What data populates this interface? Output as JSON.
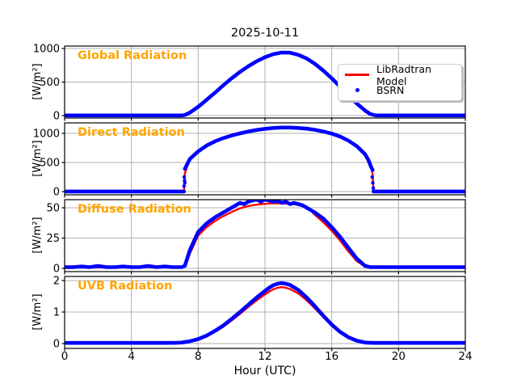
{
  "chart_data": {
    "type": "line",
    "title": "2025-10-11",
    "xlabel": "Hour (UTC)",
    "x_range": [
      0,
      24
    ],
    "x_ticks": [
      0,
      4,
      8,
      12,
      16,
      20,
      24
    ],
    "grid": true,
    "colors": {
      "model": "#ff0000",
      "obs": "#0000ff",
      "series_label": "#ffa500",
      "grid": "#b0b0b0",
      "axis": "#000000",
      "background": "#ffffff"
    },
    "legend": [
      {
        "label": "LibRadtran Model",
        "marker": "line",
        "color": "#ff0000"
      },
      {
        "label": "BSRN",
        "marker": "dot",
        "color": "#0000ff"
      }
    ],
    "subplots": [
      {
        "name": "Global Radiation",
        "ylabel": "[W/m²]",
        "yticks": [
          0,
          500,
          1000
        ],
        "ylim": [
          -36,
          1036
        ],
        "series": [
          {
            "name": "LibRadtran Model",
            "marker": "line",
            "color": "#ff0000",
            "x": [
              0,
              1,
              2,
              3,
              4,
              5,
              6,
              6.5,
              7,
              7.2,
              7.5,
              8,
              8.5,
              9,
              9.5,
              10,
              10.5,
              11,
              11.5,
              12,
              12.5,
              13,
              13.5,
              14,
              14.5,
              15,
              15.5,
              16,
              16.5,
              17,
              17.5,
              18,
              18.3,
              18.6,
              19,
              20,
              21,
              22,
              23,
              24
            ],
            "y": [
              2,
              2,
              2,
              2,
              2,
              2,
              2,
              2,
              3,
              8,
              45,
              130,
              235,
              340,
              450,
              555,
              650,
              735,
              810,
              870,
              915,
              940,
              937,
              905,
              850,
              770,
              670,
              555,
              430,
              300,
              180,
              75,
              25,
              4,
              2,
              2,
              2,
              2,
              2,
              2
            ]
          },
          {
            "name": "BSRN",
            "marker": "dot",
            "color": "#0000ff",
            "x": [
              0,
              1,
              2,
              3,
              4,
              5,
              6,
              6.5,
              7,
              7.2,
              7.5,
              8,
              8.5,
              9,
              9.5,
              10,
              10.5,
              11,
              11.5,
              12,
              12.5,
              13,
              13.5,
              14,
              14.5,
              15,
              15.5,
              16,
              16.5,
              17,
              17.5,
              18,
              18.3,
              18.6,
              19,
              20,
              21,
              22,
              23,
              24
            ],
            "y": [
              2,
              2,
              2,
              2,
              2,
              2,
              2,
              2,
              3,
              8,
              45,
              130,
              235,
              340,
              450,
              555,
              650,
              735,
              810,
              870,
              915,
              940,
              937,
              905,
              850,
              770,
              670,
              555,
              430,
              300,
              180,
              75,
              25,
              4,
              2,
              2,
              2,
              2,
              2,
              2
            ]
          }
        ],
        "extra_points": []
      },
      {
        "name": "Direct Radiation",
        "ylabel": "[W/m²]",
        "yticks": [
          0,
          500,
          1000
        ],
        "ylim": [
          -55,
          1180
        ],
        "series": [
          {
            "name": "LibRadtran Model",
            "marker": "line",
            "color": "#ff0000",
            "x": [
              0,
              1,
              2,
              3,
              4,
              5,
              6,
              6.5,
              7,
              7.15,
              7.2,
              7.5,
              8,
              8.5,
              9,
              9.5,
              10,
              10.5,
              11,
              11.5,
              12,
              12.5,
              13,
              13.5,
              14,
              14.5,
              15,
              15.5,
              16,
              16.5,
              17,
              17.5,
              18,
              18.2,
              18.35,
              18.45,
              18.5,
              18.55,
              19,
              20,
              21,
              22,
              23,
              24
            ],
            "y": [
              2,
              2,
              2,
              2,
              2,
              2,
              2,
              2,
              2,
              2,
              310,
              560,
              690,
              790,
              862,
              918,
              962,
              1000,
              1032,
              1058,
              1078,
              1092,
              1100,
              1100,
              1093,
              1080,
              1060,
              1032,
              995,
              945,
              875,
              780,
              640,
              540,
              430,
              300,
              2,
              2,
              2,
              2,
              2,
              2,
              2,
              2
            ]
          },
          {
            "name": "BSRN",
            "marker": "dot",
            "color": "#0000ff",
            "x": [
              0,
              1,
              2,
              3,
              4,
              5,
              6,
              7,
              7.15
            ],
            "y": [
              2,
              2,
              2,
              2,
              2,
              2,
              2,
              2,
              2
            ]
          },
          {
            "name": "BSRN",
            "marker": "dot",
            "color": "#0000ff",
            "x": [
              7.2,
              7.5,
              8,
              8.5,
              9,
              9.5,
              10,
              10.5,
              11,
              11.5,
              12,
              12.5,
              13,
              13.5,
              14,
              14.5,
              15,
              15.5,
              16,
              16.5,
              17,
              17.5,
              18,
              18.2,
              18.35,
              18.45
            ],
            "y": [
              390,
              560,
              690,
              790,
              862,
              918,
              962,
              1000,
              1032,
              1058,
              1078,
              1092,
              1100,
              1100,
              1093,
              1080,
              1060,
              1032,
              995,
              945,
              875,
              780,
              640,
              540,
              430,
              370
            ]
          },
          {
            "name": "BSRN",
            "marker": "dot",
            "color": "#0000ff",
            "x": [
              18.5,
              19,
              20,
              21,
              22,
              23,
              24
            ],
            "y": [
              2,
              2,
              2,
              2,
              2,
              2,
              2
            ]
          }
        ],
        "extra_points": [
          [
            7.15,
            95
          ],
          [
            7.18,
            190
          ],
          [
            7.16,
            250
          ],
          [
            7.2,
            150
          ],
          [
            18.42,
            250
          ],
          [
            18.46,
            150
          ],
          [
            18.49,
            60
          ]
        ]
      },
      {
        "name": "Diffuse Radiation",
        "ylabel": "[W/m²]",
        "yticks": [
          0,
          25,
          50
        ],
        "ylim": [
          -2.7,
          56.7
        ],
        "series": [
          {
            "name": "LibRadtran Model",
            "marker": "line",
            "color": "#ff0000",
            "x": [
              0,
              0.5,
              1,
              1.5,
              2,
              2.5,
              3,
              3.5,
              4,
              4.5,
              5,
              5.5,
              6,
              6.5,
              7,
              7.2,
              7.5,
              8,
              8.5,
              9,
              9.5,
              10,
              10.25,
              10.5,
              10.75,
              11,
              11.25,
              11.5,
              11.75,
              12,
              12.25,
              12.5,
              12.75,
              13,
              13.25,
              13.5,
              13.75,
              14,
              14.25,
              14.5,
              15,
              15.5,
              16,
              16.5,
              17,
              17.5,
              18,
              18.3,
              18.6,
              19,
              19.5,
              20,
              21,
              22,
              23,
              24
            ],
            "y": [
              1,
              1,
              1,
              1,
              1,
              1,
              1,
              1,
              1,
              1,
              1,
              1,
              1,
              1,
              1,
              1.5,
              12,
              27,
              34,
              39,
              43,
              46.5,
              48,
              49.5,
              50.5,
              51.5,
              52,
              52.5,
              53,
              53.2,
              53.5,
              53.7,
              53.7,
              53.6,
              53.4,
              53.2,
              52.8,
              52.4,
              51.8,
              51,
              44,
              38,
              31,
              23,
              14,
              6,
              1.5,
              1,
              1,
              1,
              1,
              1,
              1,
              1,
              1,
              1
            ]
          },
          {
            "name": "BSRN",
            "marker": "dot",
            "color": "#0000ff",
            "x": [
              0,
              0.5,
              1,
              1.5,
              2,
              2.5,
              3,
              3.5,
              4,
              4.5,
              5,
              5.5,
              6,
              6.5,
              7,
              7.2,
              7.5,
              8,
              8.5,
              9,
              9.5,
              10,
              10.25,
              10.5,
              10.75,
              11,
              11.25,
              11.5,
              11.75,
              12,
              12.25,
              12.5,
              12.75,
              13,
              13.25,
              13.5,
              13.75,
              14,
              14.25,
              14.5,
              15,
              15.5,
              16,
              16.5,
              17,
              17.5,
              18,
              18.3,
              18.6,
              19,
              19.5,
              20,
              21,
              22,
              23,
              24
            ],
            "y": [
              1,
              1,
              1.5,
              1,
              2,
              1,
              1,
              1.5,
              1,
              1,
              2,
              1,
              1.5,
              1,
              1,
              2,
              15,
              30,
              37,
              42,
              46,
              50,
              52,
              54,
              53,
              55,
              56,
              57,
              55,
              57,
              56,
              55,
              56,
              54,
              55,
              53,
              54,
              53,
              52,
              50,
              46,
              41,
              34,
              26,
              17,
              8,
              2,
              1,
              1,
              1,
              1,
              1,
              1,
              1,
              1,
              1
            ]
          }
        ],
        "extra_points": []
      },
      {
        "name": "UVB Radiation",
        "ylabel": "[W/m²]",
        "yticks": [
          0,
          1,
          2
        ],
        "ylim": [
          -0.155,
          2.13
        ],
        "series": [
          {
            "name": "LibRadtran Model",
            "marker": "line",
            "color": "#ff0000",
            "x": [
              0,
              1,
              2,
              3,
              4,
              5,
              6,
              6.5,
              7,
              7.5,
              8,
              8.5,
              9,
              9.5,
              10,
              10.5,
              11,
              11.5,
              12,
              12.25,
              12.5,
              12.75,
              13,
              13.25,
              13.5,
              14,
              14.5,
              15,
              15.5,
              16,
              16.5,
              17,
              17.5,
              18,
              18.5,
              19,
              20,
              21,
              22,
              23,
              24
            ],
            "y": [
              0.02,
              0.02,
              0.02,
              0.02,
              0.02,
              0.02,
              0.02,
              0.02,
              0.03,
              0.06,
              0.13,
              0.23,
              0.37,
              0.53,
              0.73,
              0.94,
              1.16,
              1.37,
              1.56,
              1.65,
              1.72,
              1.77,
              1.79,
              1.77,
              1.73,
              1.59,
              1.37,
              1.11,
              0.83,
              0.57,
              0.35,
              0.19,
              0.08,
              0.03,
              0.02,
              0.02,
              0.02,
              0.02,
              0.02,
              0.02,
              0.02
            ]
          },
          {
            "name": "BSRN",
            "marker": "dot",
            "color": "#0000ff",
            "x": [
              0,
              1,
              2,
              3,
              4,
              5,
              6,
              6.5,
              7,
              7.5,
              8,
              8.5,
              9,
              9.5,
              10,
              10.5,
              11,
              11.5,
              12,
              12.25,
              12.5,
              12.75,
              13,
              13.25,
              13.5,
              14,
              14.5,
              15,
              15.5,
              16,
              16.5,
              17,
              17.5,
              18,
              18.5,
              19,
              20,
              21,
              22,
              23,
              24
            ],
            "y": [
              0.02,
              0.02,
              0.02,
              0.02,
              0.02,
              0.02,
              0.02,
              0.02,
              0.03,
              0.07,
              0.14,
              0.25,
              0.4,
              0.57,
              0.78,
              1.0,
              1.23,
              1.46,
              1.67,
              1.77,
              1.85,
              1.9,
              1.92,
              1.9,
              1.86,
              1.7,
              1.46,
              1.18,
              0.88,
              0.6,
              0.37,
              0.2,
              0.09,
              0.03,
              0.02,
              0.02,
              0.02,
              0.02,
              0.02,
              0.02,
              0.02
            ]
          }
        ],
        "extra_points": []
      }
    ]
  }
}
